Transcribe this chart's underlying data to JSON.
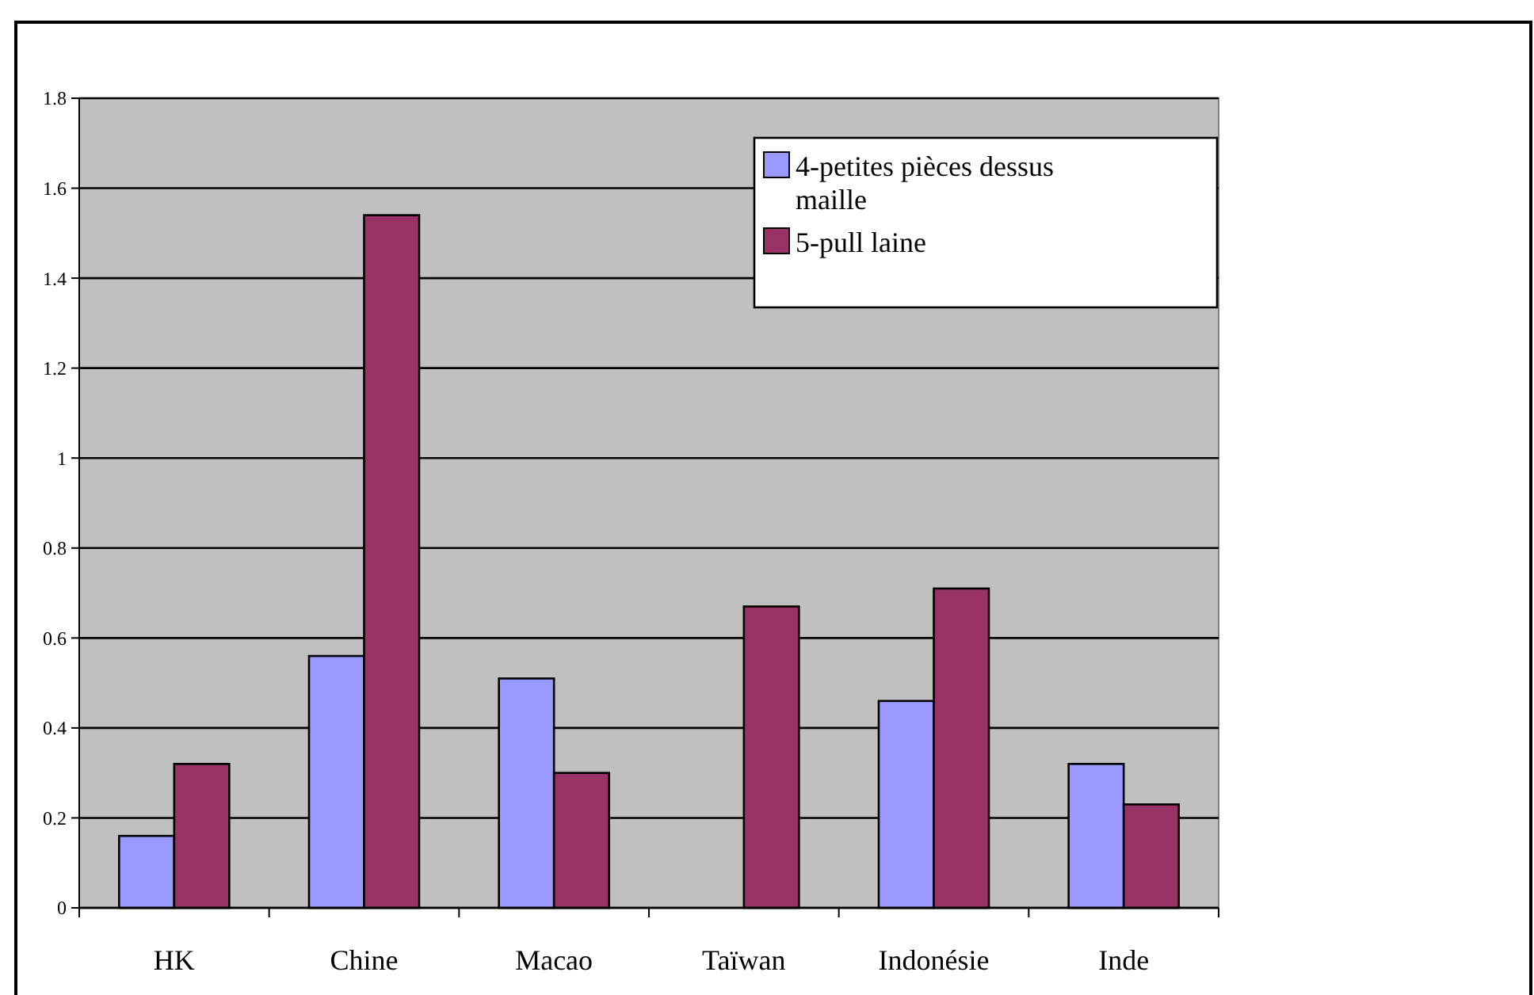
{
  "chart_data": {
    "type": "bar",
    "categories": [
      "HK",
      "Chine",
      "Macao",
      "Taïwan",
      "Indonésie",
      "Inde"
    ],
    "series": [
      {
        "name": "4-petites pièces dessus maille",
        "color": "#9999ff",
        "values": [
          0.16,
          0.56,
          0.51,
          null,
          0.46,
          0.32
        ]
      },
      {
        "name": "5-pull laine",
        "color": "#993366",
        "values": [
          0.32,
          1.54,
          0.3,
          0.67,
          0.71,
          0.23
        ]
      }
    ],
    "ylim": [
      0,
      1.8
    ],
    "yticks": [
      0,
      0.2,
      0.4,
      0.6,
      0.8,
      1,
      1.2,
      1.4,
      1.6,
      1.8
    ],
    "grid": "y",
    "legend": "top right"
  }
}
